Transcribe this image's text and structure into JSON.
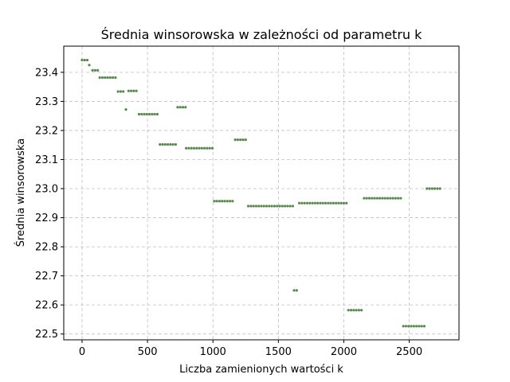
{
  "chart_data": {
    "type": "scatter",
    "title": "Średnia winsorowska w zależności od parametru k",
    "xlabel": "Liczba zamienionych wartości k",
    "ylabel": "Średnia winsorowska",
    "xlim": [
      -140,
      2880
    ],
    "ylim": [
      22.48,
      23.49
    ],
    "xticks": [
      0,
      500,
      1000,
      1500,
      2000,
      2500
    ],
    "yticks": [
      22.5,
      22.6,
      22.7,
      22.8,
      22.9,
      23.0,
      23.1,
      23.2,
      23.3,
      23.4
    ],
    "grid": true,
    "marker_color": "#5b8a50",
    "segments": [
      {
        "x_start": 0,
        "x_end": 40,
        "step": 20,
        "y": 23.442
      },
      {
        "x_start": 55,
        "x_end": 55,
        "step": 20,
        "y": 23.425
      },
      {
        "x_start": 80,
        "x_end": 120,
        "step": 20,
        "y": 23.407
      },
      {
        "x_start": 135,
        "x_end": 255,
        "step": 20,
        "y": 23.382
      },
      {
        "x_start": 275,
        "x_end": 315,
        "step": 20,
        "y": 23.334
      },
      {
        "x_start": 335,
        "x_end": 335,
        "step": 20,
        "y": 23.272
      },
      {
        "x_start": 355,
        "x_end": 415,
        "step": 20,
        "y": 23.336
      },
      {
        "x_start": 435,
        "x_end": 575,
        "step": 20,
        "y": 23.256
      },
      {
        "x_start": 595,
        "x_end": 715,
        "step": 20,
        "y": 23.152
      },
      {
        "x_start": 730,
        "x_end": 790,
        "step": 20,
        "y": 23.28
      },
      {
        "x_start": 795,
        "x_end": 995,
        "step": 20,
        "y": 23.139
      },
      {
        "x_start": 1010,
        "x_end": 1150,
        "step": 20,
        "y": 22.957
      },
      {
        "x_start": 1170,
        "x_end": 1250,
        "step": 20,
        "y": 23.168
      },
      {
        "x_start": 1270,
        "x_end": 1610,
        "step": 20,
        "y": 22.94
      },
      {
        "x_start": 1620,
        "x_end": 1640,
        "step": 20,
        "y": 22.65
      },
      {
        "x_start": 1660,
        "x_end": 2020,
        "step": 20,
        "y": 22.95
      },
      {
        "x_start": 2035,
        "x_end": 2135,
        "step": 20,
        "y": 22.582
      },
      {
        "x_start": 2155,
        "x_end": 2435,
        "step": 20,
        "y": 22.967
      },
      {
        "x_start": 2455,
        "x_end": 2615,
        "step": 20,
        "y": 22.527
      },
      {
        "x_start": 2635,
        "x_end": 2735,
        "step": 20,
        "y": 23.0
      }
    ]
  }
}
